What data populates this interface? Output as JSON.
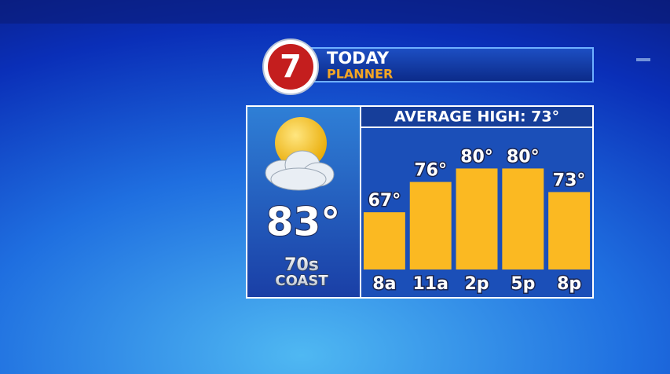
{
  "header": {
    "logo": "7",
    "title": "TODAY",
    "subtitle": "PLANNER"
  },
  "current": {
    "temperature": "83°",
    "note_top": "70s",
    "note_bottom": "COAST"
  },
  "chart_data": {
    "type": "bar",
    "title": "AVERAGE HIGH: 73°",
    "categories": [
      "8a",
      "11a",
      "2p",
      "5p",
      "8p"
    ],
    "values": [
      67,
      76,
      80,
      80,
      73
    ],
    "value_labels": [
      "67°",
      "76°",
      "80°",
      "80°",
      "73°"
    ],
    "color": "#fbb922",
    "ylim": [
      50,
      85
    ]
  }
}
